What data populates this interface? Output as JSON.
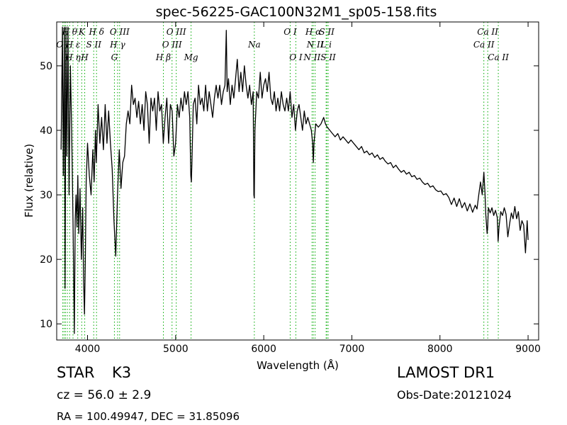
{
  "chart_data": {
    "type": "line",
    "title": "spec-56225-GAC100N32M1_sp05-158.fits",
    "xlabel": "Wavelength (Å)",
    "ylabel": "Flux (relative)",
    "xlim": [
      3650,
      9120
    ],
    "ylim": [
      7.5,
      56.8
    ],
    "xticks": [
      4000,
      5000,
      6000,
      7000,
      8000,
      9000
    ],
    "yticks": [
      10,
      20,
      30,
      40,
      50
    ],
    "grid": false,
    "colors": {
      "spectrum": "#000000",
      "line_marker": "#00aa00"
    },
    "series": [
      {
        "points": [
          [
            3700,
            37
          ],
          [
            3715,
            56
          ],
          [
            3725,
            33
          ],
          [
            3738,
            56
          ],
          [
            3745,
            15.5
          ],
          [
            3755,
            56
          ],
          [
            3765,
            36
          ],
          [
            3778,
            56
          ],
          [
            3790,
            30
          ],
          [
            3805,
            50
          ],
          [
            3820,
            40
          ],
          [
            3835,
            26
          ],
          [
            3850,
            8.5
          ],
          [
            3860,
            26
          ],
          [
            3870,
            30
          ],
          [
            3880,
            25
          ],
          [
            3890,
            33
          ],
          [
            3900,
            24
          ],
          [
            3915,
            31
          ],
          [
            3930,
            20
          ],
          [
            3945,
            28
          ],
          [
            3955,
            17
          ],
          [
            3965,
            11.5
          ],
          [
            3975,
            20
          ],
          [
            3985,
            32
          ],
          [
            4000,
            38
          ],
          [
            4020,
            33
          ],
          [
            4040,
            30
          ],
          [
            4060,
            37
          ],
          [
            4075,
            32
          ],
          [
            4090,
            40
          ],
          [
            4100,
            35
          ],
          [
            4120,
            44
          ],
          [
            4140,
            38
          ],
          [
            4160,
            42
          ],
          [
            4180,
            37
          ],
          [
            4200,
            44
          ],
          [
            4220,
            38
          ],
          [
            4240,
            43
          ],
          [
            4260,
            38
          ],
          [
            4280,
            34
          ],
          [
            4300,
            26
          ],
          [
            4320,
            20.5
          ],
          [
            4340,
            30
          ],
          [
            4360,
            37
          ],
          [
            4380,
            31
          ],
          [
            4400,
            35
          ],
          [
            4420,
            36
          ],
          [
            4440,
            41
          ],
          [
            4460,
            43
          ],
          [
            4480,
            41
          ],
          [
            4500,
            47
          ],
          [
            4520,
            44
          ],
          [
            4540,
            45
          ],
          [
            4560,
            42
          ],
          [
            4580,
            44.5
          ],
          [
            4600,
            41
          ],
          [
            4620,
            44
          ],
          [
            4640,
            40
          ],
          [
            4660,
            46
          ],
          [
            4680,
            44
          ],
          [
            4700,
            38
          ],
          [
            4720,
            45
          ],
          [
            4740,
            43
          ],
          [
            4760,
            45
          ],
          [
            4780,
            40
          ],
          [
            4800,
            46
          ],
          [
            4820,
            43
          ],
          [
            4840,
            44
          ],
          [
            4860,
            38
          ],
          [
            4880,
            42
          ],
          [
            4900,
            45
          ],
          [
            4920,
            38
          ],
          [
            4940,
            44
          ],
          [
            4960,
            43
          ],
          [
            4980,
            36
          ],
          [
            5000,
            38
          ],
          [
            5020,
            44
          ],
          [
            5040,
            42
          ],
          [
            5060,
            45
          ],
          [
            5080,
            43
          ],
          [
            5100,
            46
          ],
          [
            5120,
            44
          ],
          [
            5140,
            46
          ],
          [
            5160,
            42
          ],
          [
            5172,
            33
          ],
          [
            5178,
            32
          ],
          [
            5185,
            35
          ],
          [
            5200,
            44
          ],
          [
            5220,
            45
          ],
          [
            5240,
            41
          ],
          [
            5260,
            47
          ],
          [
            5280,
            44
          ],
          [
            5300,
            45
          ],
          [
            5320,
            43
          ],
          [
            5340,
            47
          ],
          [
            5360,
            43
          ],
          [
            5380,
            46
          ],
          [
            5400,
            44
          ],
          [
            5420,
            42
          ],
          [
            5440,
            45
          ],
          [
            5460,
            47
          ],
          [
            5480,
            45
          ],
          [
            5500,
            47
          ],
          [
            5520,
            44
          ],
          [
            5540,
            46
          ],
          [
            5560,
            47
          ],
          [
            5575,
            55.5
          ],
          [
            5585,
            46
          ],
          [
            5600,
            48
          ],
          [
            5620,
            44
          ],
          [
            5640,
            47
          ],
          [
            5660,
            45
          ],
          [
            5680,
            48
          ],
          [
            5700,
            51
          ],
          [
            5720,
            46
          ],
          [
            5740,
            49
          ],
          [
            5760,
            46
          ],
          [
            5780,
            50
          ],
          [
            5800,
            47
          ],
          [
            5820,
            45
          ],
          [
            5840,
            47
          ],
          [
            5860,
            44
          ],
          [
            5880,
            46
          ],
          [
            5888,
            30
          ],
          [
            5893,
            29.5
          ],
          [
            5900,
            40
          ],
          [
            5920,
            46
          ],
          [
            5940,
            45
          ],
          [
            5960,
            49
          ],
          [
            5980,
            45
          ],
          [
            6000,
            47
          ],
          [
            6020,
            48
          ],
          [
            6040,
            46
          ],
          [
            6060,
            49
          ],
          [
            6080,
            45
          ],
          [
            6100,
            44
          ],
          [
            6120,
            46
          ],
          [
            6140,
            43
          ],
          [
            6160,
            45
          ],
          [
            6180,
            43
          ],
          [
            6200,
            46
          ],
          [
            6220,
            44
          ],
          [
            6240,
            43
          ],
          [
            6260,
            45
          ],
          [
            6280,
            43
          ],
          [
            6300,
            46
          ],
          [
            6320,
            42
          ],
          [
            6340,
            44
          ],
          [
            6360,
            40
          ],
          [
            6380,
            43
          ],
          [
            6400,
            44
          ],
          [
            6420,
            42
          ],
          [
            6440,
            40
          ],
          [
            6460,
            43
          ],
          [
            6480,
            41
          ],
          [
            6500,
            42
          ],
          [
            6520,
            41
          ],
          [
            6540,
            40
          ],
          [
            6555,
            38
          ],
          [
            6563,
            35
          ],
          [
            6570,
            38
          ],
          [
            6590,
            41
          ],
          [
            6620,
            40.5
          ],
          [
            6650,
            41
          ],
          [
            6680,
            42
          ],
          [
            6700,
            41
          ],
          [
            6720,
            40.5
          ],
          [
            6750,
            40
          ],
          [
            6780,
            39.5
          ],
          [
            6810,
            39
          ],
          [
            6840,
            39.5
          ],
          [
            6870,
            38.5
          ],
          [
            6900,
            39
          ],
          [
            6930,
            38.5
          ],
          [
            6960,
            38
          ],
          [
            6990,
            38.5
          ],
          [
            7020,
            38
          ],
          [
            7050,
            37.5
          ],
          [
            7080,
            37
          ],
          [
            7110,
            37.5
          ],
          [
            7140,
            36.5
          ],
          [
            7170,
            36.8
          ],
          [
            7200,
            36.2
          ],
          [
            7230,
            36.5
          ],
          [
            7260,
            35.8
          ],
          [
            7290,
            36.2
          ],
          [
            7320,
            35.5
          ],
          [
            7350,
            35.8
          ],
          [
            7380,
            35.2
          ],
          [
            7410,
            34.8
          ],
          [
            7440,
            35
          ],
          [
            7470,
            34.2
          ],
          [
            7500,
            34.6
          ],
          [
            7530,
            34
          ],
          [
            7560,
            33.5
          ],
          [
            7590,
            33.8
          ],
          [
            7620,
            33.2
          ],
          [
            7650,
            33.5
          ],
          [
            7680,
            32.8
          ],
          [
            7710,
            33
          ],
          [
            7740,
            32.4
          ],
          [
            7770,
            32.6
          ],
          [
            7800,
            32
          ],
          [
            7830,
            31.6
          ],
          [
            7860,
            31.8
          ],
          [
            7890,
            31.2
          ],
          [
            7920,
            31.4
          ],
          [
            7950,
            30.8
          ],
          [
            7980,
            30.5
          ],
          [
            8010,
            30.6
          ],
          [
            8040,
            30
          ],
          [
            8070,
            30.2
          ],
          [
            8100,
            29.6
          ],
          [
            8130,
            28.5
          ],
          [
            8160,
            29.5
          ],
          [
            8190,
            28.2
          ],
          [
            8220,
            29.4
          ],
          [
            8250,
            28
          ],
          [
            8280,
            28.8
          ],
          [
            8310,
            27.5
          ],
          [
            8340,
            28.6
          ],
          [
            8370,
            27.3
          ],
          [
            8400,
            28.4
          ],
          [
            8420,
            27.8
          ],
          [
            8440,
            30
          ],
          [
            8460,
            32
          ],
          [
            8480,
            30
          ],
          [
            8498,
            33.5
          ],
          [
            8510,
            30.5
          ],
          [
            8520,
            27
          ],
          [
            8535,
            24
          ],
          [
            8542,
            25
          ],
          [
            8550,
            28
          ],
          [
            8570,
            27.2
          ],
          [
            8590,
            28
          ],
          [
            8610,
            26.8
          ],
          [
            8630,
            27.6
          ],
          [
            8650,
            26.5
          ],
          [
            8660,
            22.8
          ],
          [
            8670,
            25
          ],
          [
            8690,
            27.4
          ],
          [
            8710,
            26.8
          ],
          [
            8730,
            28
          ],
          [
            8750,
            27
          ],
          [
            8770,
            23.5
          ],
          [
            8790,
            25.5
          ],
          [
            8810,
            27.2
          ],
          [
            8830,
            26.3
          ],
          [
            8850,
            28.2
          ],
          [
            8870,
            26.3
          ],
          [
            8890,
            27.4
          ],
          [
            8910,
            24.5
          ],
          [
            8930,
            26
          ],
          [
            8950,
            25.3
          ],
          [
            8970,
            21
          ],
          [
            8990,
            26
          ],
          [
            9000,
            23
          ]
        ]
      }
    ],
    "line_labels": [
      {
        "text": "O I",
        "wave": 3719,
        "row": "upper"
      },
      {
        "text": "H θ",
        "wave": 3797,
        "row": "top"
      },
      {
        "text": "H ε",
        "wave": 3835,
        "row": "upper"
      },
      {
        "text": "H η",
        "wave": 3835,
        "row": "lower"
      },
      {
        "text": "K",
        "wave": 3934,
        "row": "top"
      },
      {
        "text": "S II",
        "wave": 4070,
        "row": "upper"
      },
      {
        "text": "H",
        "wave": 3968,
        "row": "lower"
      },
      {
        "text": "H δ",
        "wave": 4102,
        "row": "top"
      },
      {
        "text": "O III",
        "wave": 4364,
        "row": "top"
      },
      {
        "text": "H γ",
        "wave": 4341,
        "row": "upper"
      },
      {
        "text": "G",
        "wave": 4305,
        "row": "lower"
      },
      {
        "text": "O III",
        "wave": 5007,
        "row": "top"
      },
      {
        "text": "O III",
        "wave": 4959,
        "row": "upper"
      },
      {
        "text": "H β",
        "wave": 4861,
        "row": "lower"
      },
      {
        "text": "Mg",
        "wave": 5175,
        "row": "lower"
      },
      {
        "text": "Na",
        "wave": 5893,
        "row": "upper"
      },
      {
        "text": "O I",
        "wave": 6300,
        "row": "top"
      },
      {
        "text": "O I",
        "wave": 6364,
        "row": "lower"
      },
      {
        "text": "H α",
        "wave": 6563,
        "row": "top"
      },
      {
        "text": "N II",
        "wave": 6583,
        "row": "upper"
      },
      {
        "text": "N II",
        "wave": 6548,
        "row": "lower"
      },
      {
        "text": "S II",
        "wave": 6716,
        "row": "top"
      },
      {
        "text": "L i",
        "wave": 6708,
        "row": "upper"
      },
      {
        "text": "S II",
        "wave": 6731,
        "row": "lower"
      },
      {
        "text": "Ca II",
        "wave": 8542,
        "row": "top"
      },
      {
        "text": "Ca II",
        "wave": 8498,
        "row": "upper"
      },
      {
        "text": "Ca II",
        "wave": 8662,
        "row": "lower"
      }
    ],
    "line_markers": [
      3719,
      3734,
      3750,
      3771,
      3797,
      3835,
      3889,
      3934,
      3968,
      4070,
      4102,
      4305,
      4341,
      4364,
      4861,
      4959,
      5007,
      5175,
      5893,
      6300,
      6364,
      6548,
      6563,
      6583,
      6708,
      6716,
      6731,
      8498,
      8542,
      8662
    ]
  },
  "info": {
    "class_label": "STAR",
    "subclass_label": "K3",
    "redshift": "cz = 56.0  ± 2.9",
    "coords": "RA = 100.49947, DEC = 31.85096",
    "survey": "LAMOST DR1",
    "obs_date": "Obs-Date:20121024"
  }
}
